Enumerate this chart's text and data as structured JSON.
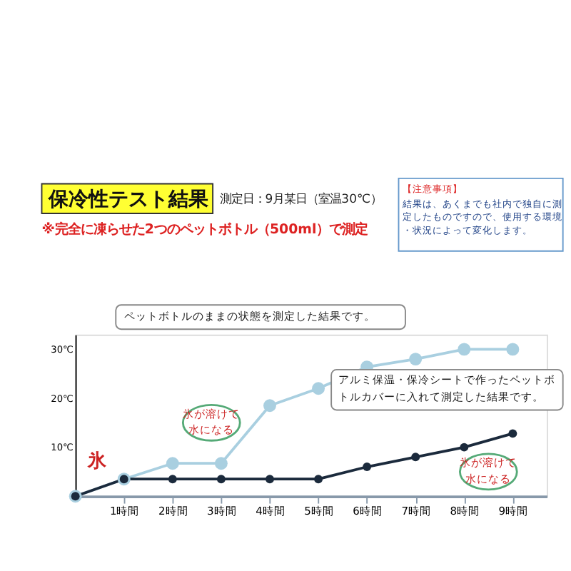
{
  "chart_data": {
    "type": "line",
    "title": "保冷性テスト結果",
    "subtitle": "測定日：9月某日（室温30℃）",
    "x": [
      0,
      1,
      2,
      3,
      4,
      5,
      6,
      7,
      8,
      9
    ],
    "series": [
      {
        "color": "#a9cfe0",
        "values": [
          0,
          3.5,
          6.7,
          6.7,
          18.5,
          22,
          26.4,
          28,
          30,
          30
        ]
      },
      {
        "color": "#1b2a3c",
        "values": [
          0,
          3.5,
          3.5,
          3.5,
          3.5,
          3.5,
          6,
          8,
          10,
          12.8
        ]
      }
    ],
    "xlim": [
      0,
      9.7
    ],
    "xticks": [
      {
        "value": 1,
        "label": "1時間"
      },
      {
        "value": 2,
        "label": "2時間"
      },
      {
        "value": 3,
        "label": "3時間"
      },
      {
        "value": 4,
        "label": "4時間"
      },
      {
        "value": 5,
        "label": "5時間"
      },
      {
        "value": 6,
        "label": "6時間"
      },
      {
        "value": 7,
        "label": "7時間"
      },
      {
        "value": 8,
        "label": "8時間"
      },
      {
        "value": 9,
        "label": "9時間"
      }
    ],
    "ylim": [
      0,
      33
    ],
    "yticks": [
      {
        "value": 10,
        "label": "10℃"
      },
      {
        "value": 20,
        "label": "20℃"
      },
      {
        "value": 30,
        "label": "30℃"
      }
    ],
    "annotations": [
      "※完全に凍らせた2つのペットボトル（500ml）で測定",
      "【注意事項】",
      "結果は、あくまでも社内で独自に測定したものですので、使用する環境・状況によって変化します。",
      "ペットボトルのままの状態を測定した結果です。",
      "アルミ保温・保冷シートで作ったペットボトルカバーに入れて測定した結果です。",
      {
        "text": "氷が溶けて水になる",
        "x": 2.8,
        "y": 15
      },
      {
        "text": "氷が溶けて水になる",
        "x": 8.5,
        "y": 5
      },
      {
        "text": "氷",
        "x": 0,
        "y": 0
      }
    ],
    "grid": false,
    "legend": false,
    "marker": "circle",
    "line_style": "solid"
  }
}
